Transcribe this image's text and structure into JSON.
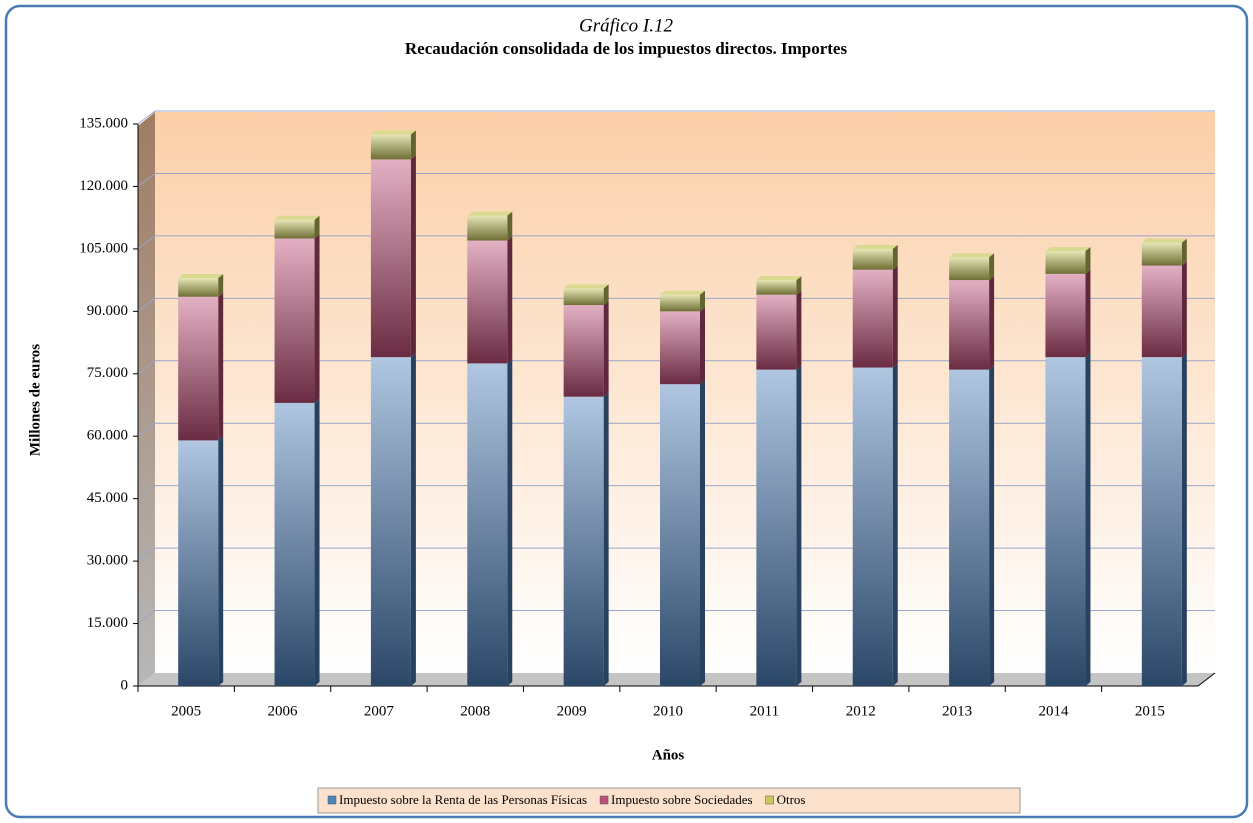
{
  "chart_data": {
    "type": "stacked_bar",
    "title": "Gráfico I.12",
    "subtitle": "Recaudación consolidada de los impuestos directos.  Importes",
    "y_label": "Millones de euros",
    "x_label": "Años",
    "categories": [
      "2005",
      "2006",
      "2007",
      "2008",
      "2009",
      "2010",
      "2011",
      "2012",
      "2013",
      "2014",
      "2015"
    ],
    "series": [
      {
        "name": "Impuesto sobre la Renta de las Personas Físicas",
        "color": "#4f81bd",
        "values": [
          59000,
          68000,
          79000,
          77500,
          69500,
          72500,
          76000,
          76500,
          76000,
          79000,
          79000
        ]
      },
      {
        "name": "Impuesto sobre Sociedades",
        "color": "#c0507a",
        "values": [
          34500,
          39500,
          47500,
          29500,
          22000,
          17500,
          18000,
          23500,
          21500,
          20000,
          22000
        ]
      },
      {
        "name": "Otros",
        "color": "#c8c860",
        "values": [
          4500,
          4500,
          6000,
          6000,
          4000,
          4000,
          3500,
          5000,
          5500,
          5500,
          5500
        ]
      }
    ],
    "ylim": [
      0,
      135000
    ],
    "yticks": [
      0,
      {
        "value": 15000,
        "label": "15.000"
      },
      {
        "value": 30000,
        "label": "30.000"
      },
      {
        "value": 45000,
        "label": "45.000"
      },
      {
        "value": 60000,
        "label": "60.000"
      },
      {
        "value": 75000,
        "label": "75.000"
      },
      {
        "value": 90000,
        "label": "90.000"
      },
      {
        "value": 105000,
        "label": "105.000"
      },
      {
        "value": 120000,
        "label": "120.000"
      },
      {
        "value": 135000,
        "label": "135.000"
      }
    ],
    "grid": true
  }
}
